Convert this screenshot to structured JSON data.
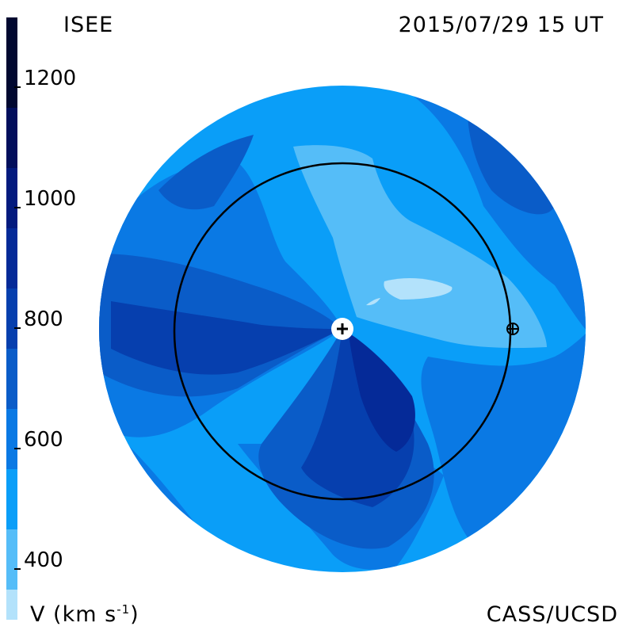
{
  "header": {
    "left_label": "ISEE",
    "right_label": "2015/07/29 15 UT"
  },
  "footer": {
    "left_label": "V (km s",
    "left_label_exponent": "-1",
    "left_label_close": ")",
    "right_label": "CASS/UCSD"
  },
  "colorbar": {
    "min": 300,
    "max": 1300,
    "ticks": [
      "1200",
      "1000",
      "800",
      "600",
      "400"
    ],
    "tick_values": [
      1200,
      1000,
      800,
      600,
      400
    ],
    "bands": [
      {
        "from": 300,
        "to": 350,
        "color": "#b3e2fb"
      },
      {
        "from": 350,
        "to": 450,
        "color": "#55bdf8"
      },
      {
        "from": 450,
        "to": 550,
        "color": "#0a9ef8"
      },
      {
        "from": 550,
        "to": 650,
        "color": "#0a79e4"
      },
      {
        "from": 650,
        "to": 750,
        "color": "#0a5cc8"
      },
      {
        "from": 750,
        "to": 850,
        "color": "#063fae"
      },
      {
        "from": 850,
        "to": 950,
        "color": "#052a98"
      },
      {
        "from": 950,
        "to": 1050,
        "color": "#031a7e"
      },
      {
        "from": 1050,
        "to": 1150,
        "color": "#020f5c"
      },
      {
        "from": 1150,
        "to": 1300,
        "color": "#010830"
      }
    ]
  },
  "map": {
    "colors": {
      "background_disk": "#0a9ef8",
      "pale": "#b3e2fb",
      "light": "#55bdf8",
      "mid": "#0a79e4",
      "deep": "#0a5cc8",
      "darker": "#063fae",
      "darkest": "#052a98",
      "orbit": "#000000"
    },
    "sun_marker": "sun-plus-icon",
    "earth_marker": "earth-crosshair-icon"
  }
}
